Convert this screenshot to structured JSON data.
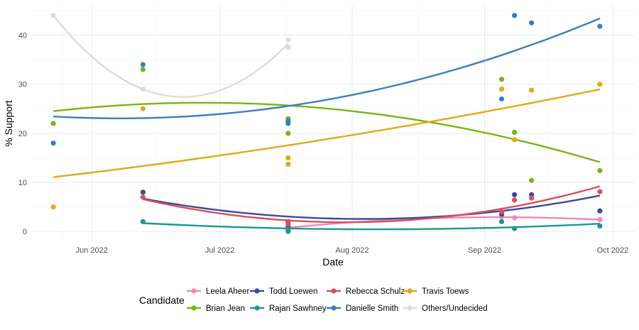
{
  "chart_data": {
    "type": "scatter",
    "subtype": "scatter with quadratic trend lines",
    "xlabel": "Date",
    "ylabel": "% Support",
    "ylim": [
      -2,
      46
    ],
    "xlim": [
      "2022-05-18",
      "2022-10-06"
    ],
    "yticks": [
      0,
      10,
      20,
      30,
      40
    ],
    "xticks": [
      {
        "date": "2022-06-01",
        "label": "Jun 2022"
      },
      {
        "date": "2022-07-01",
        "label": "Jul 2022"
      },
      {
        "date": "2022-08-01",
        "label": "Aug 2022"
      },
      {
        "date": "2022-09-01",
        "label": "Sep 2022"
      },
      {
        "date": "2022-10-01",
        "label": "Oct 2022"
      }
    ],
    "grid": true,
    "legend": {
      "title": "Candidate",
      "placement": "bottom"
    },
    "series": [
      {
        "name": "Leela Aheer",
        "color": "#F287B7",
        "points": [
          [
            "2022-07-17",
            1
          ],
          [
            "2022-07-17",
            0.5
          ],
          [
            "2022-09-05",
            3
          ],
          [
            "2022-09-08",
            2.8
          ],
          [
            "2022-09-28",
            2.4
          ]
        ]
      },
      {
        "name": "Brian Jean",
        "color": "#7AB317",
        "points": [
          [
            "2022-05-23",
            22
          ],
          [
            "2022-06-13",
            33
          ],
          [
            "2022-07-17",
            23
          ],
          [
            "2022-07-17",
            20
          ],
          [
            "2022-09-05",
            31
          ],
          [
            "2022-09-08",
            20.2
          ],
          [
            "2022-09-12",
            10.4
          ],
          [
            "2022-09-28",
            12.4
          ]
        ]
      },
      {
        "name": "Todd Loewen",
        "color": "#3C4A9B",
        "points": [
          [
            "2022-06-13",
            8
          ],
          [
            "2022-07-17",
            2
          ],
          [
            "2022-07-17",
            1
          ],
          [
            "2022-09-05",
            3.5
          ],
          [
            "2022-09-08",
            7.5
          ],
          [
            "2022-09-12",
            7.5
          ],
          [
            "2022-09-28",
            4.2
          ]
        ]
      },
      {
        "name": "Rajan Sawhney",
        "color": "#1E9692",
        "points": [
          [
            "2022-06-13",
            2
          ],
          [
            "2022-07-17",
            0.5
          ],
          [
            "2022-07-17",
            0
          ],
          [
            "2022-09-05",
            2
          ],
          [
            "2022-09-08",
            0.6
          ],
          [
            "2022-09-28",
            1.1
          ]
        ]
      },
      {
        "name": "Rebecca Schulz",
        "color": "#D94F59",
        "points": [
          [
            "2022-06-13",
            7
          ],
          [
            "2022-07-17",
            2
          ],
          [
            "2022-07-17",
            1.5
          ],
          [
            "2022-09-05",
            4
          ],
          [
            "2022-09-08",
            6.4
          ],
          [
            "2022-09-12",
            6.8
          ],
          [
            "2022-09-28",
            8.1
          ]
        ]
      },
      {
        "name": "Danielle Smith",
        "color": "#3A7EC0",
        "points": [
          [
            "2022-05-23",
            18
          ],
          [
            "2022-06-13",
            34
          ],
          [
            "2022-07-17",
            22.5
          ],
          [
            "2022-07-17",
            22
          ],
          [
            "2022-09-05",
            27
          ],
          [
            "2022-09-08",
            44
          ],
          [
            "2022-09-12",
            42.5
          ],
          [
            "2022-09-28",
            41.8
          ]
        ]
      },
      {
        "name": "Travis Toews",
        "color": "#E2A817",
        "points": [
          [
            "2022-05-23",
            5
          ],
          [
            "2022-06-13",
            25
          ],
          [
            "2022-07-17",
            15
          ],
          [
            "2022-07-17",
            13.7
          ],
          [
            "2022-09-05",
            29
          ],
          [
            "2022-09-08",
            18.7
          ],
          [
            "2022-09-12",
            28.8
          ],
          [
            "2022-09-28",
            30
          ]
        ]
      },
      {
        "name": "Others/Undecided",
        "color": "#DCDCDC",
        "points": [
          [
            "2022-05-23",
            44
          ],
          [
            "2022-06-13",
            29
          ],
          [
            "2022-07-17",
            39
          ],
          [
            "2022-07-17",
            37.5
          ]
        ]
      }
    ]
  }
}
